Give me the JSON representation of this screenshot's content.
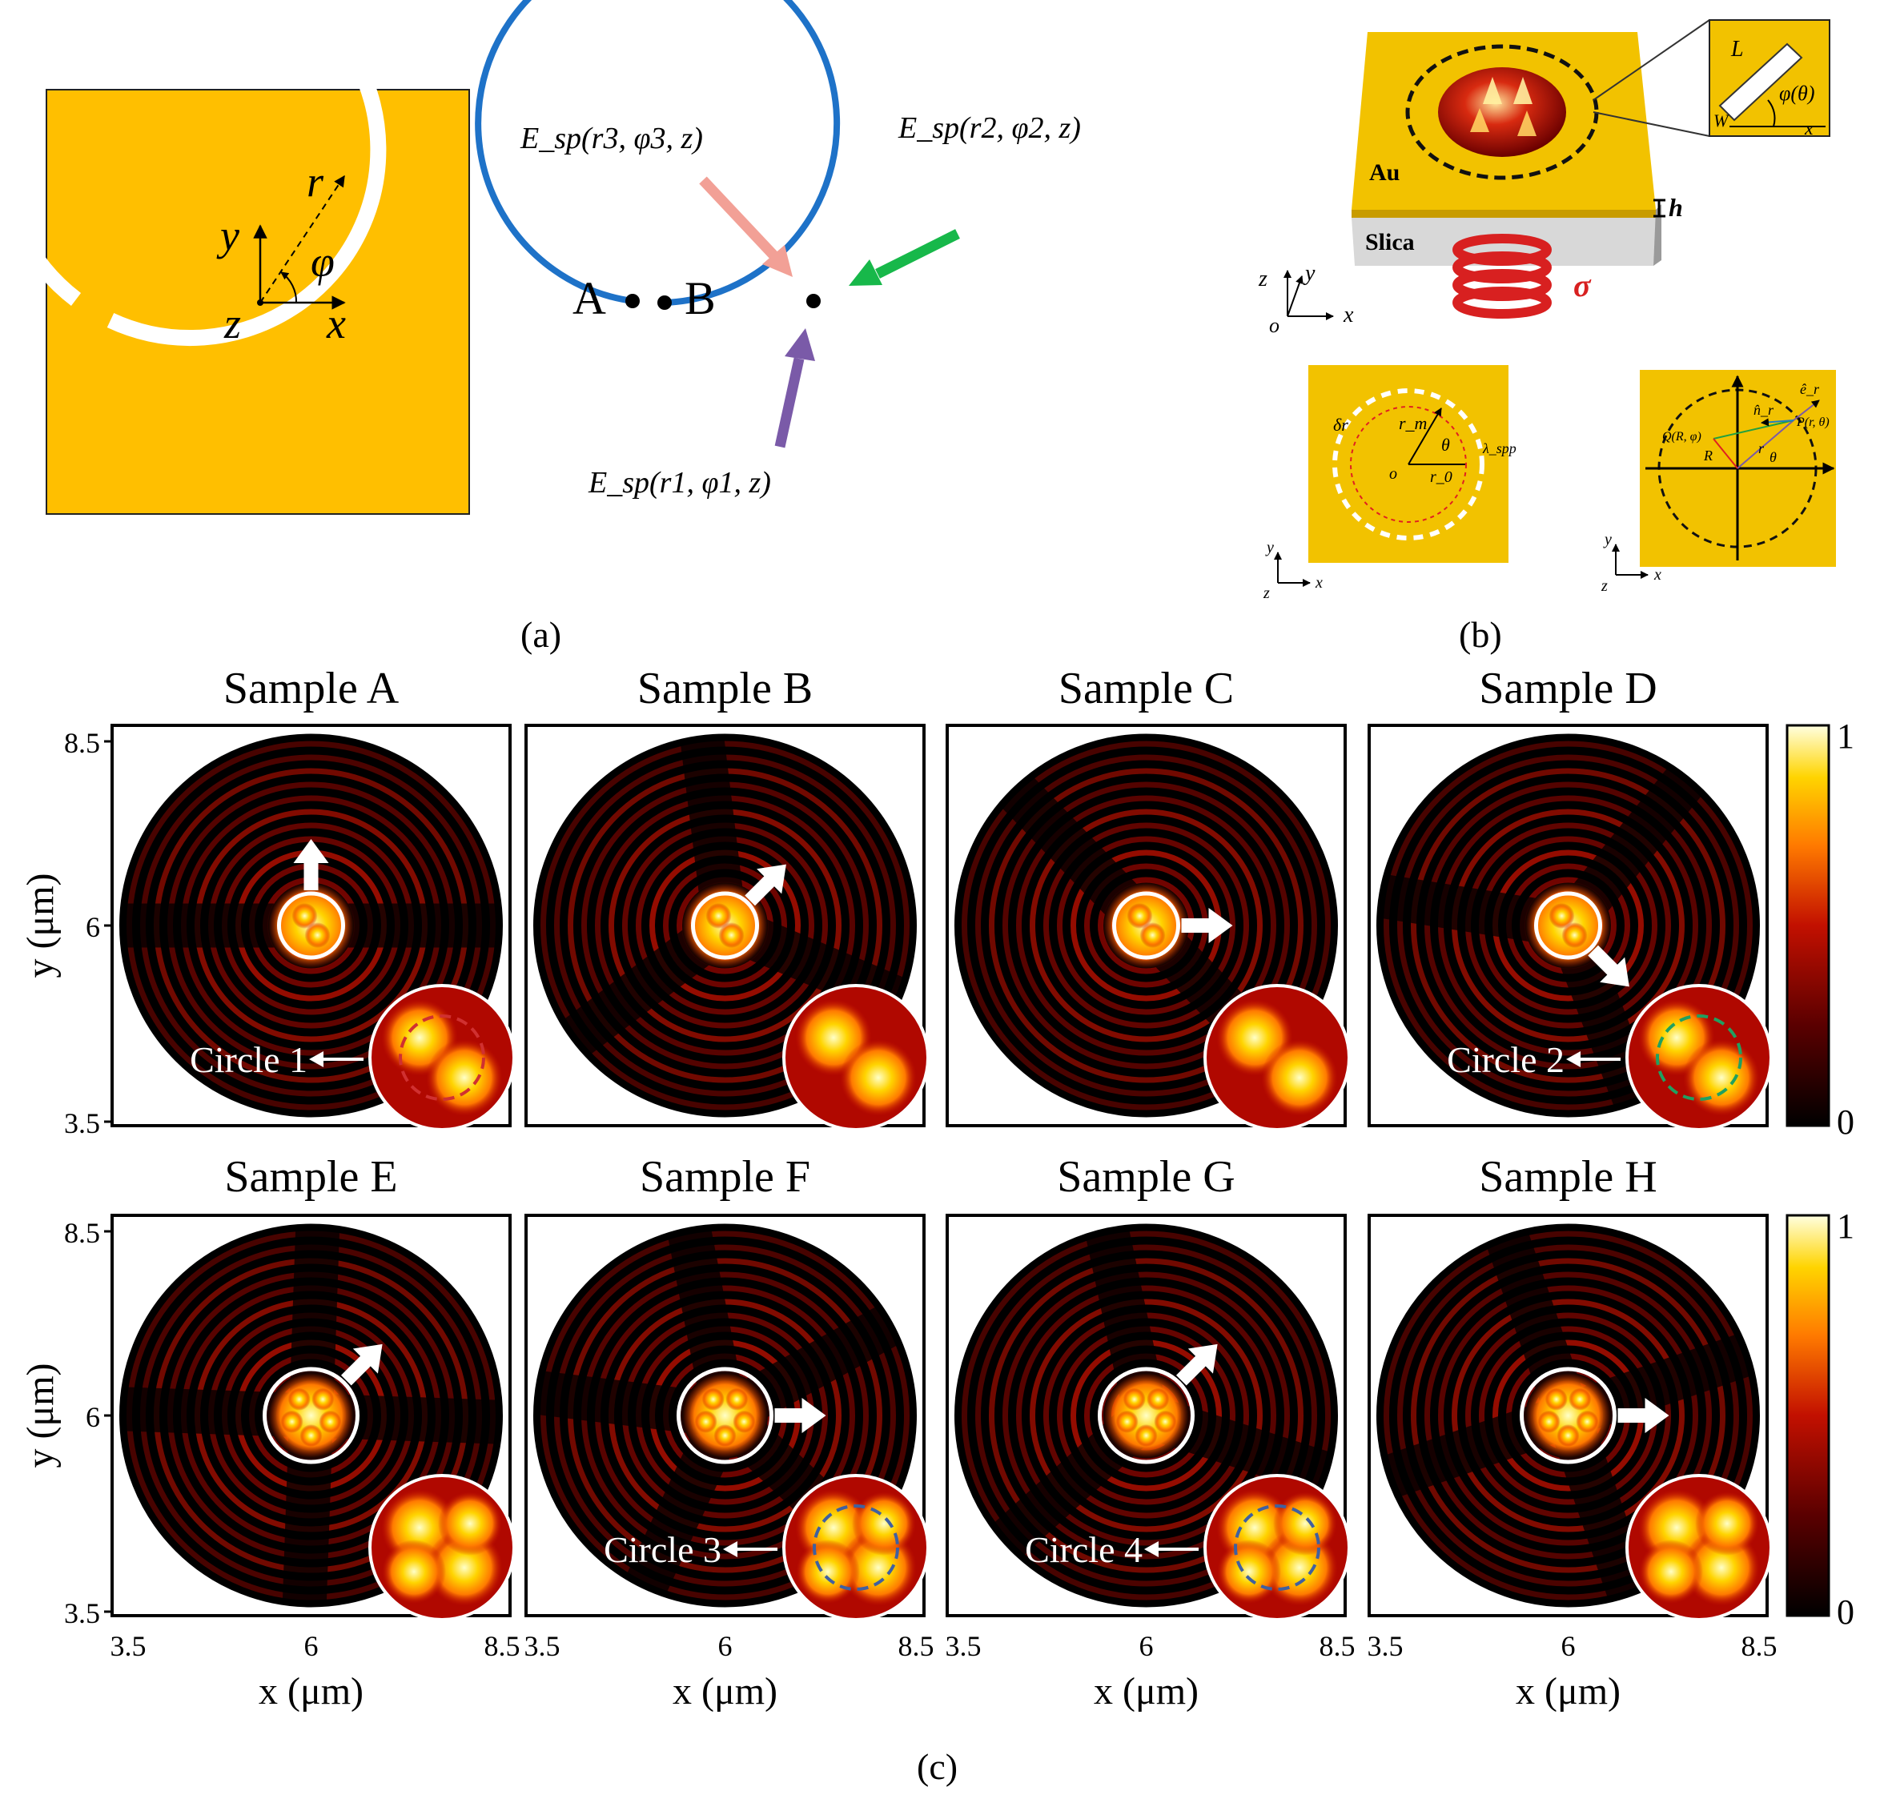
{
  "panel_labels": {
    "a": "(a)",
    "b": "(b)",
    "c": "(c)"
  },
  "panel_a": {
    "left": {
      "y": "y",
      "x": "x",
      "z": "z",
      "r": "r",
      "phi": "φ"
    },
    "right": {
      "point_a": "A",
      "point_b": "B",
      "e3": "E_sp(r3, φ3, z)",
      "e2": "E_sp(r2, φ2, z)",
      "e1": "E_sp(r1, φ1, z)"
    }
  },
  "panel_b": {
    "au": "Au",
    "silica": "Slica",
    "h": "h",
    "sigma": "σ",
    "inset_L": "L",
    "inset_W": "W",
    "inset_phi": "φ(θ)",
    "inset_x": "x",
    "axes": {
      "z": "z",
      "y": "y",
      "x": "x",
      "o": "o"
    },
    "sub1": {
      "dr": "δr",
      "rm": "r_m",
      "theta": "θ",
      "o": "o",
      "r0": "r_0",
      "lambda": "λ_spp",
      "y": "y",
      "x": "x",
      "z": "z"
    },
    "sub2": {
      "e_r": "ê_r",
      "n_r": "n̂_r",
      "p": "P(r, θ)",
      "q": "Q(R, φ)",
      "R": "R",
      "r": "r",
      "theta": "θ",
      "y": "y",
      "x": "x",
      "z": "z"
    }
  },
  "panel_c": {
    "titles": [
      "Sample A",
      "Sample B",
      "Sample C",
      "Sample D",
      "Sample E",
      "Sample F",
      "Sample G",
      "Sample H"
    ],
    "y_axis_label": "y (μm)",
    "x_axis_label": "x (μm)",
    "y_ticks": [
      "8.5",
      "6",
      "3.5"
    ],
    "x_ticks": [
      "3.5",
      "6",
      "8.5"
    ],
    "colorbar_ticks": [
      "1",
      "0"
    ],
    "circle_labels": [
      "Circle 1",
      "Circle 2",
      "Circle 3",
      "Circle 4"
    ],
    "colormap": [
      "#000000",
      "#5a0000",
      "#c21000",
      "#ff7a00",
      "#ffd400",
      "#ffffc8"
    ]
  }
}
